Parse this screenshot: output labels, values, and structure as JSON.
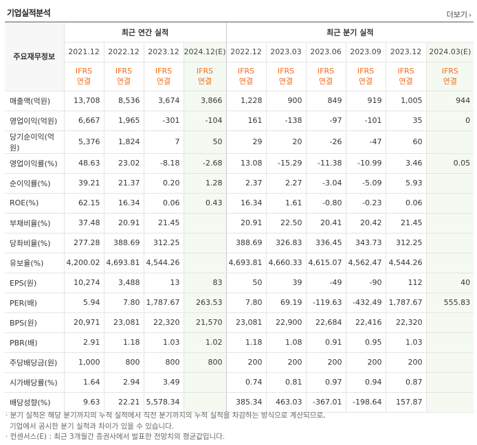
{
  "title": "기업실적분석",
  "more_label": "더보기",
  "row_header": "주요재무정보",
  "groups": {
    "annual": "최근 연간 실적",
    "quarter": "최근 분기 실적"
  },
  "periods": [
    "2021.12",
    "2022.12",
    "2023.12",
    "2024.12(E)",
    "2022.12",
    "2023.03",
    "2023.06",
    "2023.09",
    "2023.12",
    "2024.03(E)"
  ],
  "ifrs": {
    "top": "IFRS",
    "bottom": "연결"
  },
  "rows": [
    {
      "label": "매출액(억원)",
      "values": [
        "13,708",
        "8,536",
        "3,674",
        "3,866",
        "1,228",
        "900",
        "849",
        "919",
        "1,005",
        "944"
      ]
    },
    {
      "label": "영업이익(억원)",
      "values": [
        "6,667",
        "1,965",
        "-301",
        "-104",
        "161",
        "-138",
        "-97",
        "-101",
        "35",
        "0"
      ]
    },
    {
      "label": "당기순이익(억원)",
      "values": [
        "5,376",
        "1,824",
        "7",
        "50",
        "29",
        "20",
        "-26",
        "-47",
        "60",
        ""
      ]
    },
    {
      "label": "영업이익률(%)",
      "values": [
        "48.63",
        "23.02",
        "-8.18",
        "-2.68",
        "13.08",
        "-15.29",
        "-11.38",
        "-10.99",
        "3.46",
        "0.05"
      ]
    },
    {
      "label": "순이익률(%)",
      "values": [
        "39.21",
        "21.37",
        "0.20",
        "1.28",
        "2.37",
        "2.27",
        "-3.04",
        "-5.09",
        "5.93",
        ""
      ]
    },
    {
      "label": "ROE(%)",
      "values": [
        "62.15",
        "16.34",
        "0.06",
        "0.43",
        "16.34",
        "1.61",
        "-0.80",
        "-0.23",
        "0.06",
        ""
      ]
    },
    {
      "label": "부채비율(%)",
      "values": [
        "37.48",
        "20.91",
        "21.45",
        "",
        "20.91",
        "22.50",
        "20.41",
        "20.42",
        "21.45",
        ""
      ]
    },
    {
      "label": "당좌비율(%)",
      "values": [
        "277.28",
        "388.69",
        "312.25",
        "",
        "388.69",
        "326.83",
        "336.45",
        "343.73",
        "312.25",
        ""
      ]
    },
    {
      "label": "유보율(%)",
      "values": [
        "4,200.02",
        "4,693.81",
        "4,544.26",
        "",
        "4,693.81",
        "4,660.33",
        "4,615.07",
        "4,562.47",
        "4,544.26",
        ""
      ]
    },
    {
      "label": "EPS(원)",
      "values": [
        "10,274",
        "3,488",
        "13",
        "83",
        "50",
        "39",
        "-49",
        "-90",
        "112",
        "40"
      ]
    },
    {
      "label": "PER(배)",
      "values": [
        "5.94",
        "7.80",
        "1,787.67",
        "263.53",
        "7.80",
        "69.19",
        "-119.63",
        "-432.49",
        "1,787.67",
        "555.83"
      ]
    },
    {
      "label": "BPS(원)",
      "values": [
        "20,971",
        "23,081",
        "22,320",
        "21,570",
        "23,081",
        "22,900",
        "22,684",
        "22,416",
        "22,320",
        ""
      ]
    },
    {
      "label": "PBR(배)",
      "values": [
        "2.91",
        "1.18",
        "1.03",
        "1.02",
        "1.18",
        "1.08",
        "0.91",
        "0.95",
        "1.03",
        ""
      ]
    },
    {
      "label": "주당배당금(원)",
      "values": [
        "1,000",
        "800",
        "800",
        "800",
        "200",
        "200",
        "200",
        "200",
        "200",
        ""
      ]
    },
    {
      "label": "시가배당률(%)",
      "values": [
        "1.64",
        "2.94",
        "3.49",
        "",
        "0.74",
        "0.81",
        "0.97",
        "0.94",
        "0.87",
        ""
      ]
    },
    {
      "label": "배당성향(%)",
      "values": [
        "9.63",
        "22.21",
        "5,578.34",
        "",
        "385.34",
        "463.03",
        "-367.01",
        "-198.64",
        "157.87",
        ""
      ]
    }
  ],
  "section_starts": [
    0,
    3,
    6,
    9,
    13
  ],
  "notes": [
    "· 분기 실적은 해당 분기까지의 누적 실적에서 직전 분기까지의 누적 실적을 차감하는 방식으로 계산되므로,",
    "  기업에서 공시한 분기 실적과 차이가 있을 수 있습니다.",
    "· 컨센서스(E) : 최근 3개월간 증권사에서 발표한 전망치의 평균값입니다."
  ],
  "colors": {
    "negative": "#e23a2e",
    "ifrs": "#f26b1d",
    "estimate_bg": "#f4faf2"
  }
}
